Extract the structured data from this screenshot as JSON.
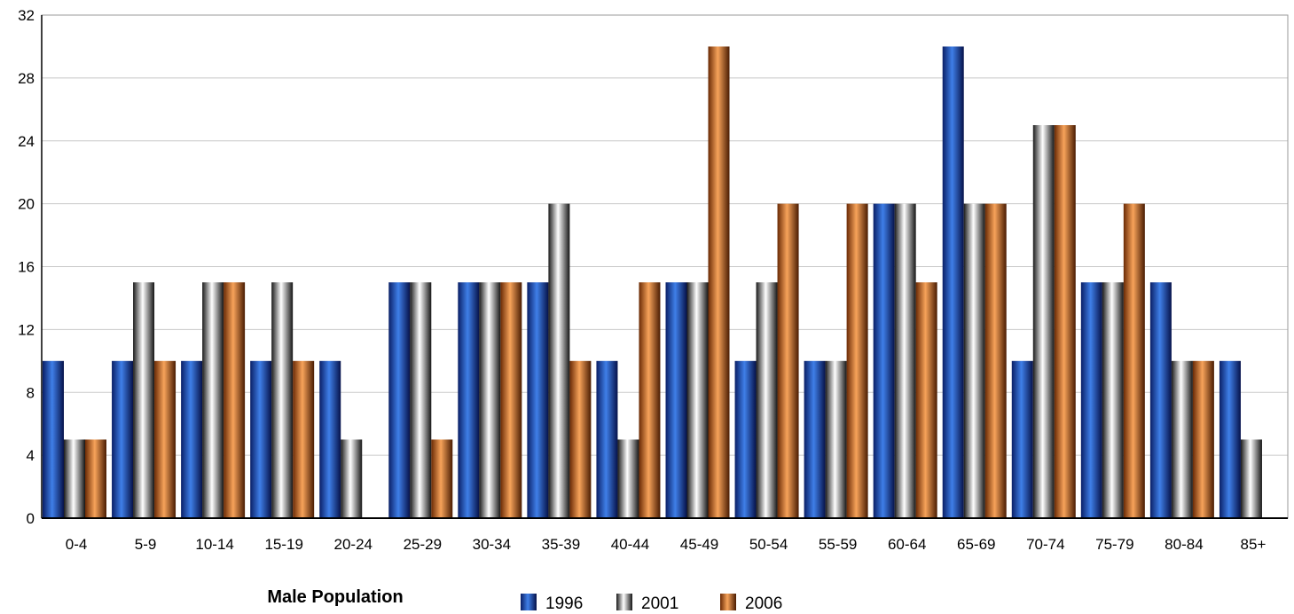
{
  "chart_data": {
    "type": "bar",
    "categories": [
      "0-4",
      "5-9",
      "10-14",
      "15-19",
      "20-24",
      "25-29",
      "30-34",
      "35-39",
      "40-44",
      "45-49",
      "50-54",
      "55-59",
      "60-64",
      "65-69",
      "70-74",
      "75-79",
      "80-84",
      "85+"
    ],
    "series": [
      {
        "name": "1996",
        "color": "#1e4fb4",
        "values": [
          10,
          10,
          10,
          10,
          10,
          15,
          15,
          15,
          10,
          15,
          10,
          10,
          20,
          30,
          10,
          15,
          15,
          10
        ]
      },
      {
        "name": "2001",
        "color": "#909090",
        "values": [
          5,
          15,
          15,
          15,
          5,
          15,
          15,
          20,
          5,
          15,
          15,
          10,
          20,
          20,
          25,
          15,
          10,
          5
        ]
      },
      {
        "name": "2006",
        "color": "#d46a1c",
        "values": [
          5,
          10,
          15,
          10,
          0,
          5,
          15,
          10,
          15,
          30,
          20,
          20,
          15,
          20,
          25,
          20,
          10,
          0
        ]
      }
    ],
    "xlabel": "Male Population",
    "ylabel": "",
    "ylim": [
      0,
      32
    ],
    "yticks": [
      "0",
      "4",
      "8",
      "12",
      "16",
      "20",
      "24",
      "28",
      "32"
    ],
    "grid": true,
    "legend_position": "bottom"
  }
}
